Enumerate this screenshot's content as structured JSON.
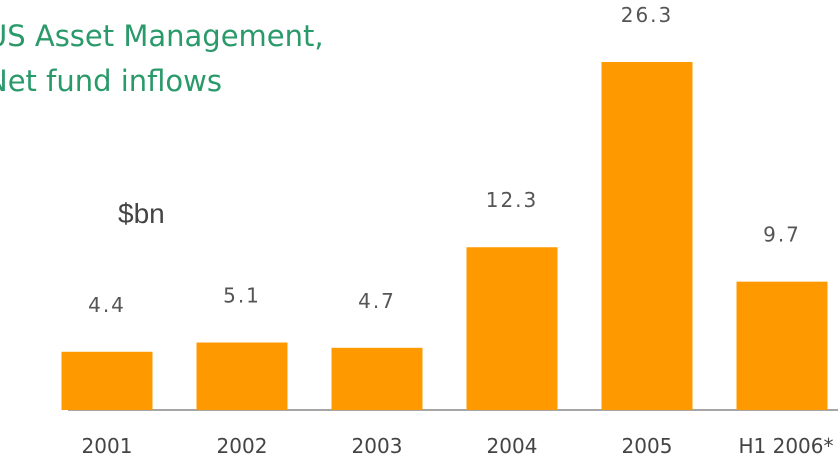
{
  "chart_data": {
    "type": "bar",
    "title": [
      "US Asset Management,",
      "Net fund inflows"
    ],
    "y_label": "$bn",
    "categories": [
      "2001",
      "2002",
      "2003",
      "2004",
      "2005",
      "H1 2006*"
    ],
    "values": [
      4.4,
      5.1,
      4.7,
      12.3,
      26.3,
      9.7
    ],
    "color": "#ff9900"
  }
}
